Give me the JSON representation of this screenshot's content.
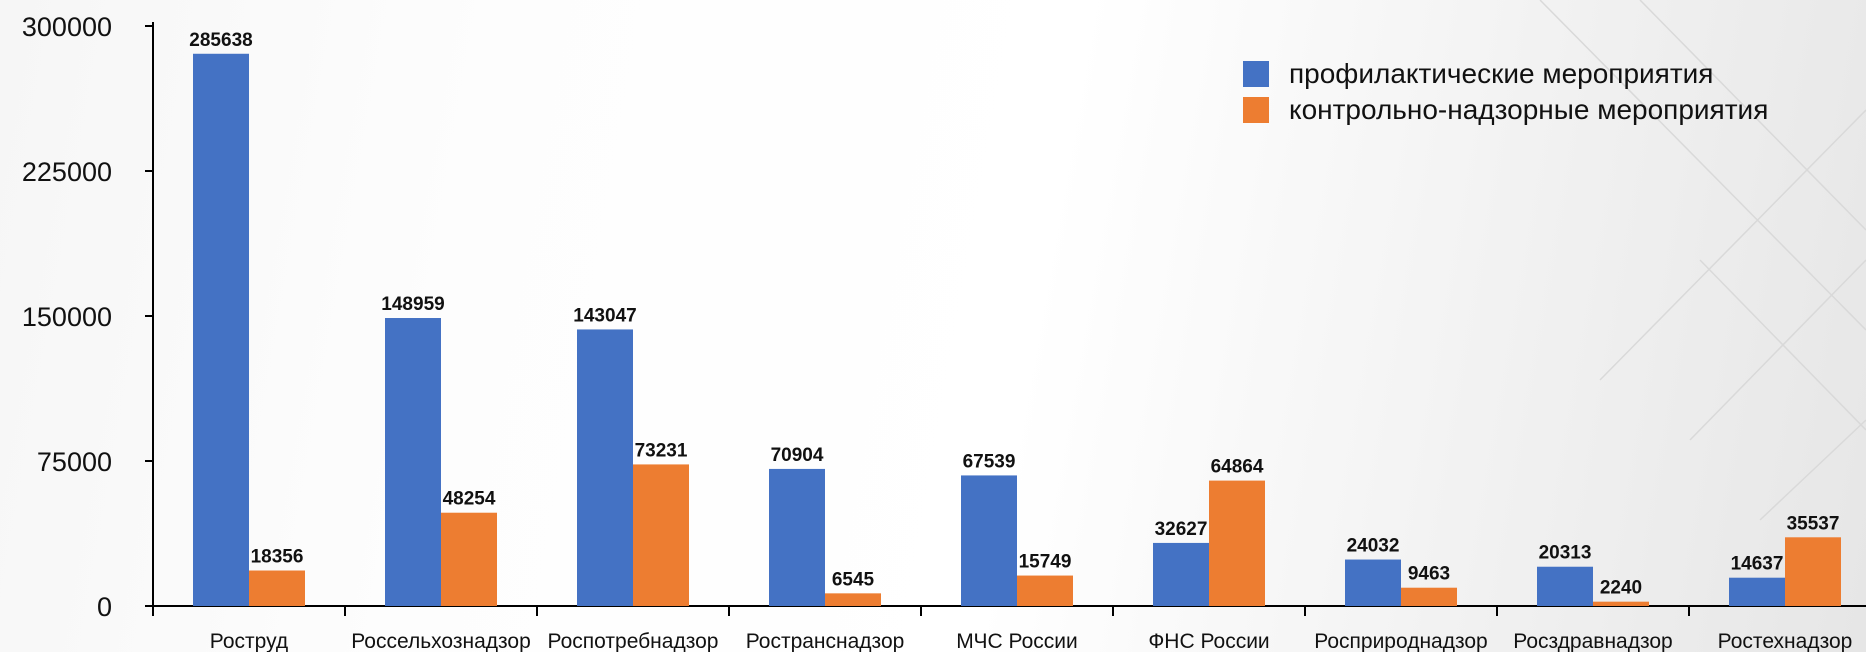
{
  "chart_data": {
    "type": "bar",
    "categories": [
      "Роструд",
      "Россельхознадзор",
      "Роспотребнадзор",
      "Ространснадзор",
      "МЧС России",
      "ФНС России",
      "Росприроднадзор",
      "Росздравнадзор",
      "Ростехнадзор"
    ],
    "series": [
      {
        "name": "профилактические мероприятия",
        "color": "#4472c4",
        "values": [
          285638,
          148959,
          143047,
          70904,
          67539,
          32627,
          24032,
          20313,
          14637
        ]
      },
      {
        "name": "контрольно-надзорные мероприятия",
        "color": "#ed7d31",
        "values": [
          18356,
          48254,
          73231,
          6545,
          15749,
          64864,
          9463,
          2240,
          35537
        ]
      }
    ],
    "ylim": [
      0,
      300000
    ],
    "yticks": [
      "0",
      "75000",
      "150000",
      "225000",
      "300000"
    ],
    "grid": false,
    "legend_position": "top-right"
  }
}
